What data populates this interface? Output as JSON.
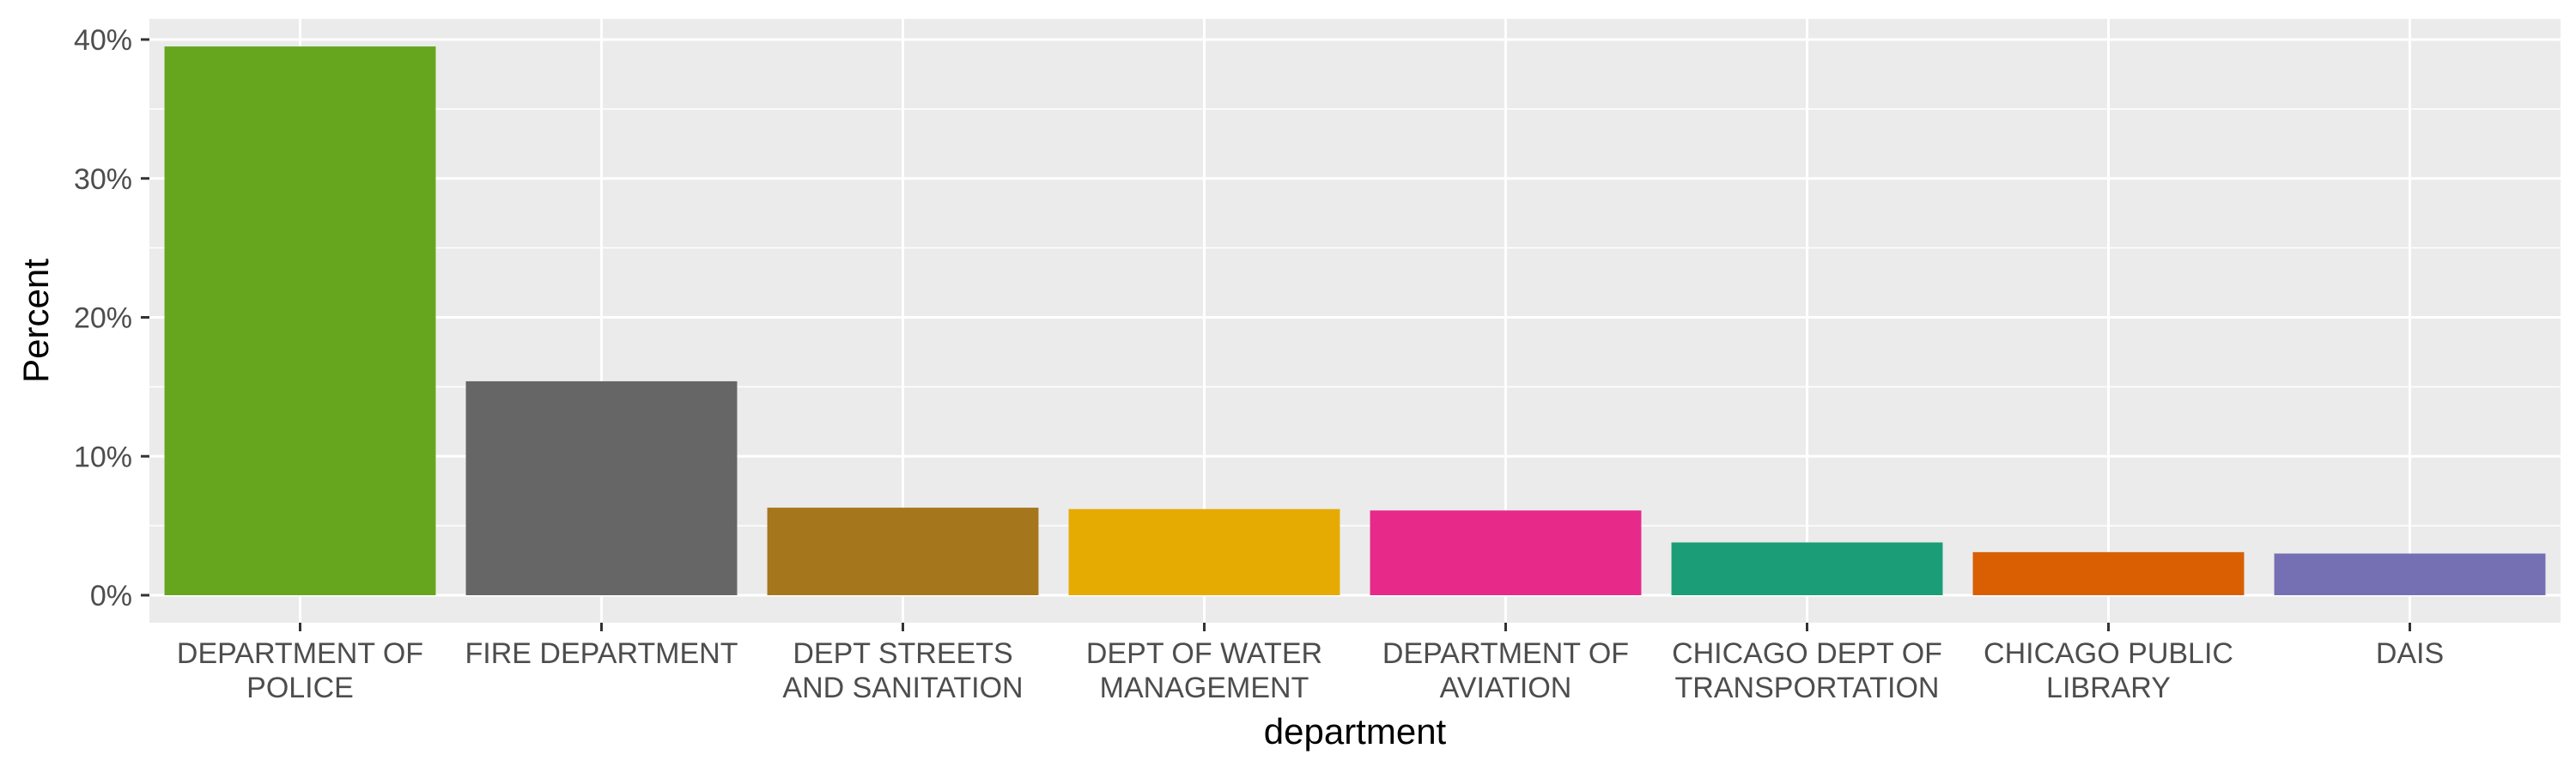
{
  "chart_data": {
    "type": "bar",
    "xlabel": "department",
    "ylabel": "Percent",
    "ylim": [
      0,
      0.4
    ],
    "yticks": [
      0,
      0.1,
      0.2,
      0.3,
      0.4
    ],
    "ytick_labels": [
      "0%",
      "10%",
      "20%",
      "30%",
      "40%"
    ],
    "grid": true,
    "categories": [
      [
        "DEPARTMENT OF",
        "POLICE"
      ],
      [
        "FIRE DEPARTMENT"
      ],
      [
        "DEPT STREETS",
        "AND SANITATION"
      ],
      [
        "DEPT OF WATER",
        "MANAGEMENT"
      ],
      [
        "DEPARTMENT OF",
        "AVIATION"
      ],
      [
        "CHICAGO DEPT OF",
        "TRANSPORTATION"
      ],
      [
        "CHICAGO PUBLIC",
        "LIBRARY"
      ],
      [
        "DAIS"
      ]
    ],
    "values": [
      0.395,
      0.154,
      0.063,
      0.062,
      0.061,
      0.038,
      0.031,
      0.03
    ],
    "colors": [
      "#66a61e",
      "#666666",
      "#a6761d",
      "#e6ab02",
      "#e7298a",
      "#1b9e77",
      "#d95f02",
      "#7570b3"
    ],
    "panel_background": "#ebebeb",
    "grid_color": "#ffffff"
  }
}
